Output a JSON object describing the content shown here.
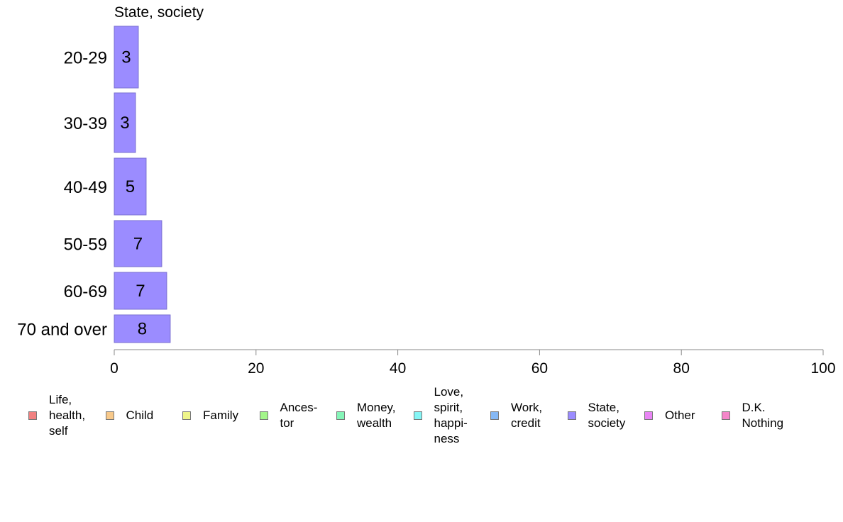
{
  "chart_data": {
    "type": "bar",
    "orientation": "horizontal",
    "title": "State, society",
    "categories": [
      "20-29",
      "30-39",
      "40-49",
      "50-59",
      "60-69",
      "70 and over"
    ],
    "series": [
      {
        "name": "State, society",
        "values": [
          3.4,
          3.0,
          4.5,
          6.7,
          7.4,
          7.9
        ],
        "labels": [
          "3",
          "3",
          "5",
          "7",
          "7",
          "8"
        ],
        "color": "#9b8cff"
      }
    ],
    "xlim": [
      0,
      100
    ],
    "xticks": [
      "0",
      "20",
      "40",
      "60",
      "80",
      "100"
    ],
    "grid": false,
    "legend_position": "bottom",
    "legend": [
      {
        "label": "Life,\nhealth,\nself",
        "color": "#f08080"
      },
      {
        "label": "Child",
        "color": "#f8c98a"
      },
      {
        "label": "Family",
        "color": "#eef58a"
      },
      {
        "label": "Ances-\ntor",
        "color": "#a3f58a"
      },
      {
        "label": "Money,\nwealth",
        "color": "#85f5b8"
      },
      {
        "label": "Love,\nspirit,\nhappi-\nness",
        "color": "#85f5f5"
      },
      {
        "label": "Work,\ncredit",
        "color": "#85b8f5"
      },
      {
        "label": "State,\nsociety",
        "color": "#9b8cff"
      },
      {
        "label": "Other",
        "color": "#e985f5"
      },
      {
        "label": "D.K.\nNothing",
        "color": "#f585c9"
      }
    ]
  }
}
